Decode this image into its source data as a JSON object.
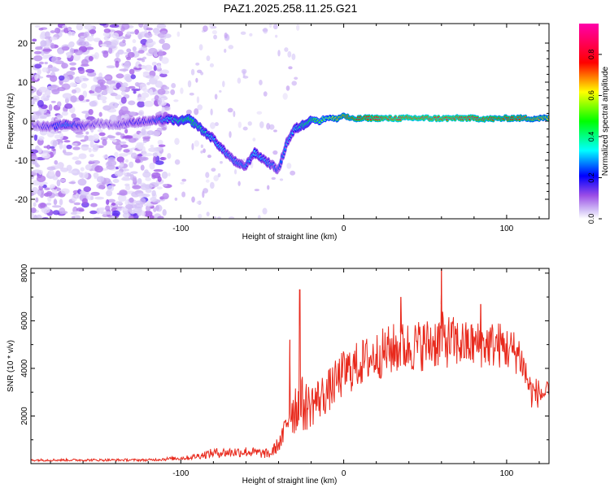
{
  "title": "PAZ1.2025.258.11.25.G21",
  "chart_data": [
    {
      "type": "heatmap",
      "title": "PAZ1.2025.258.11.25.G21",
      "xlabel": "Height of straight line (km)",
      "ylabel": "Frequency (Hz)",
      "xlim": [
        -192,
        126
      ],
      "ylim": [
        -25,
        25
      ],
      "xticks": [
        -100,
        0,
        100
      ],
      "yticks": [
        -20,
        -10,
        0,
        10,
        20
      ],
      "colorbar": {
        "label": "Normalized spectral amplitude",
        "range": [
          0,
          0.95
        ],
        "ticks": [
          0.0,
          0.2,
          0.4,
          0.6,
          0.8
        ]
      },
      "ridge": [
        {
          "x": -190,
          "f": -1.0,
          "a": 0.15
        },
        {
          "x": -180,
          "f": -1.5,
          "a": 0.2
        },
        {
          "x": -170,
          "f": -0.8,
          "a": 0.3
        },
        {
          "x": -160,
          "f": -1.2,
          "a": 0.2
        },
        {
          "x": -150,
          "f": -0.5,
          "a": 0.15
        },
        {
          "x": -140,
          "f": -1.0,
          "a": 0.15
        },
        {
          "x": -130,
          "f": -0.3,
          "a": 0.2
        },
        {
          "x": -120,
          "f": 0.0,
          "a": 0.2
        },
        {
          "x": -108,
          "f": 0.5,
          "a": 0.35
        },
        {
          "x": -100,
          "f": 0.0,
          "a": 0.45
        },
        {
          "x": -95,
          "f": 0.5,
          "a": 0.5
        },
        {
          "x": -90,
          "f": -1.0,
          "a": 0.45
        },
        {
          "x": -85,
          "f": -3.0,
          "a": 0.4
        },
        {
          "x": -80,
          "f": -4.5,
          "a": 0.35
        },
        {
          "x": -75,
          "f": -7.0,
          "a": 0.35
        },
        {
          "x": -70,
          "f": -9.0,
          "a": 0.3
        },
        {
          "x": -65,
          "f": -11.0,
          "a": 0.3
        },
        {
          "x": -60,
          "f": -11.5,
          "a": 0.3
        },
        {
          "x": -55,
          "f": -8.0,
          "a": 0.35
        },
        {
          "x": -50,
          "f": -9.5,
          "a": 0.35
        },
        {
          "x": -45,
          "f": -11.0,
          "a": 0.3
        },
        {
          "x": -40,
          "f": -12.5,
          "a": 0.25
        },
        {
          "x": -35,
          "f": -5.5,
          "a": 0.3
        },
        {
          "x": -30,
          "f": -2.0,
          "a": 0.35
        },
        {
          "x": -25,
          "f": -1.0,
          "a": 0.45
        },
        {
          "x": -20,
          "f": 0.5,
          "a": 0.5
        },
        {
          "x": -15,
          "f": 0.0,
          "a": 0.55
        },
        {
          "x": -10,
          "f": 1.0,
          "a": 0.6
        },
        {
          "x": -5,
          "f": 0.5,
          "a": 0.7
        },
        {
          "x": 0,
          "f": 1.5,
          "a": 0.75
        },
        {
          "x": 5,
          "f": 0.5,
          "a": 0.8
        },
        {
          "x": 15,
          "f": 0.8,
          "a": 0.85
        },
        {
          "x": 30,
          "f": 0.7,
          "a": 0.9
        },
        {
          "x": 45,
          "f": 0.8,
          "a": 0.9
        },
        {
          "x": 60,
          "f": 0.7,
          "a": 0.9
        },
        {
          "x": 75,
          "f": 0.8,
          "a": 0.88
        },
        {
          "x": 90,
          "f": 0.6,
          "a": 0.85
        },
        {
          "x": 105,
          "f": 0.8,
          "a": 0.8
        },
        {
          "x": 115,
          "f": 0.7,
          "a": 0.75
        },
        {
          "x": 126,
          "f": 0.8,
          "a": 0.7
        }
      ]
    },
    {
      "type": "line",
      "xlabel": "Height of straight line (km)",
      "ylabel": "SNR (10 * v/v)",
      "xlim": [
        -192,
        126
      ],
      "ylim": [
        0,
        8200
      ],
      "xticks": [
        -100,
        0,
        100
      ],
      "yticks": [
        2000,
        4000,
        6000,
        8000
      ],
      "color": "#e8291c",
      "envelope": [
        {
          "x": -192,
          "mean": 150,
          "noise": 100
        },
        {
          "x": -120,
          "mean": 150,
          "noise": 100
        },
        {
          "x": -95,
          "mean": 250,
          "noise": 200
        },
        {
          "x": -80,
          "mean": 450,
          "noise": 400
        },
        {
          "x": -60,
          "mean": 500,
          "noise": 450
        },
        {
          "x": -45,
          "mean": 400,
          "noise": 400
        },
        {
          "x": -38,
          "mean": 1000,
          "noise": 800
        },
        {
          "x": -33,
          "mean": 2200,
          "noise": 2000
        },
        {
          "x": -28,
          "mean": 2500,
          "noise": 2800
        },
        {
          "x": -22,
          "mean": 2400,
          "noise": 2000
        },
        {
          "x": -10,
          "mean": 3000,
          "noise": 1800
        },
        {
          "x": 0,
          "mean": 3800,
          "noise": 2000
        },
        {
          "x": 15,
          "mean": 4400,
          "noise": 2000
        },
        {
          "x": 30,
          "mean": 4800,
          "noise": 2200
        },
        {
          "x": 50,
          "mean": 5000,
          "noise": 2200
        },
        {
          "x": 60,
          "mean": 5200,
          "noise": 2400
        },
        {
          "x": 75,
          "mean": 5000,
          "noise": 2000
        },
        {
          "x": 95,
          "mean": 5000,
          "noise": 2000
        },
        {
          "x": 108,
          "mean": 4600,
          "noise": 1800
        },
        {
          "x": 115,
          "mean": 3000,
          "noise": 1400
        },
        {
          "x": 126,
          "mean": 2900,
          "noise": 1000
        }
      ],
      "peaks": [
        {
          "x": -27,
          "y": 7300
        },
        {
          "x": -33,
          "y": 5200
        },
        {
          "x": 60,
          "y": 8200
        },
        {
          "x": 35,
          "y": 7000
        },
        {
          "x": 84,
          "y": 6700
        }
      ]
    }
  ]
}
